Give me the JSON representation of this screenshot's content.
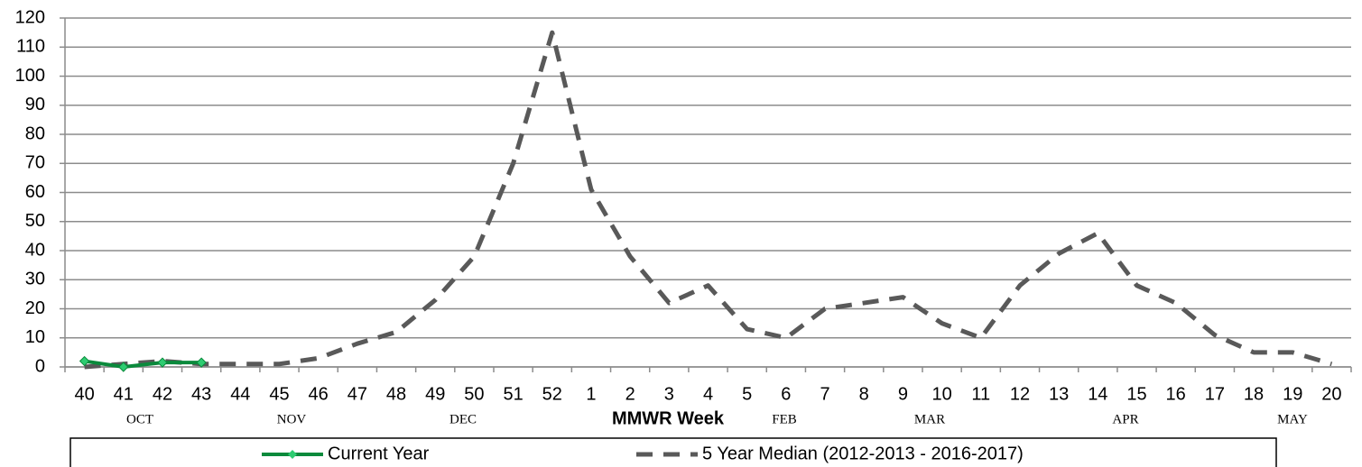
{
  "chart_data": {
    "type": "line",
    "x_label": "MMWR Week",
    "categories": [
      "40",
      "41",
      "42",
      "43",
      "44",
      "45",
      "46",
      "47",
      "48",
      "49",
      "50",
      "51",
      "52",
      "1",
      "2",
      "3",
      "4",
      "5",
      "6",
      "7",
      "8",
      "9",
      "10",
      "11",
      "12",
      "13",
      "14",
      "15",
      "16",
      "17",
      "18",
      "19",
      "20"
    ],
    "months": [
      "OCT",
      "NOV",
      "DEC",
      "FEB",
      "MAR",
      "APR",
      "MAY"
    ],
    "series": [
      {
        "name": "Current Year",
        "color": "#0b8a3c",
        "style": "solid",
        "markers": true,
        "values": [
          2,
          0,
          1.5,
          1.5,
          null,
          null,
          null,
          null,
          null,
          null,
          null,
          null,
          null,
          null,
          null,
          null,
          null,
          null,
          null,
          null,
          null,
          null,
          null,
          null,
          null,
          null,
          null,
          null,
          null,
          null,
          null,
          null,
          null
        ]
      },
      {
        "name": "5 Year Median (2012-2013 - 2016-2017)",
        "color": "#595959",
        "style": "dashed",
        "markers": false,
        "values": [
          0,
          1,
          2,
          1,
          1,
          1,
          3,
          8,
          12,
          23,
          38,
          70,
          115,
          61,
          38,
          22,
          28,
          13,
          10,
          20,
          22,
          24,
          15,
          10,
          28,
          39,
          46,
          28,
          22,
          11,
          5,
          5,
          1
        ]
      }
    ],
    "ylim": [
      0,
      120
    ],
    "yticks": [
      0,
      10,
      20,
      30,
      40,
      50,
      60,
      70,
      80,
      90,
      100,
      110,
      120
    ],
    "grid": true,
    "legend": "bottom"
  }
}
